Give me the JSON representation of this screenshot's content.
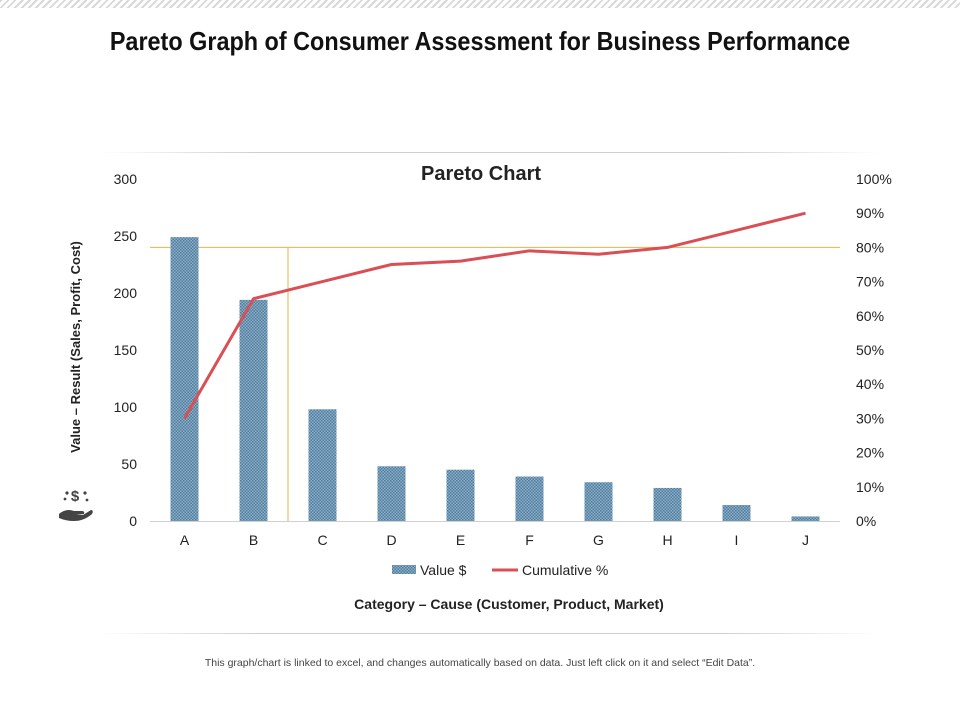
{
  "page": {
    "title": "Pareto Graph of Consumer Assessment for Business Performance",
    "footer": "This graph/chart is linked to excel, and changes automatically based on data. Just left click on it and select “Edit Data”."
  },
  "icon": {
    "name": "money-hand-icon"
  },
  "colors": {
    "bar": "#7fa3bd",
    "bar_dark": "#4a7a9b",
    "line": "#d94f54",
    "threshold": "#e8b24a",
    "text": "#222222"
  },
  "chart_data": {
    "type": "bar",
    "title": "Pareto Chart",
    "xlabel": "Category – Cause (Customer, Product, Market)",
    "ylabel": "Value – Result (Sales, Profit, Cost)",
    "categories": [
      "A",
      "B",
      "C",
      "D",
      "E",
      "F",
      "G",
      "H",
      "I",
      "J"
    ],
    "ylim": [
      0,
      300
    ],
    "yticks": [
      0,
      50,
      100,
      150,
      200,
      250,
      300
    ],
    "y2lim": [
      0,
      100
    ],
    "y2ticks": [
      "0%",
      "10%",
      "20%",
      "30%",
      "40%",
      "50%",
      "60%",
      "70%",
      "80%",
      "90%",
      "100%"
    ],
    "series": [
      {
        "name": "Value $",
        "type": "bar",
        "axis": "left",
        "values": [
          249,
          194,
          98,
          48,
          45,
          39,
          34,
          29,
          14,
          4
        ]
      },
      {
        "name": "Cumulative %",
        "type": "line",
        "axis": "right",
        "values": [
          30,
          65,
          70,
          75,
          76,
          79,
          78,
          80,
          85,
          90
        ]
      }
    ],
    "threshold": {
      "percent": 80,
      "category_index": 1.5
    },
    "legend_position": "bottom",
    "grid": false
  }
}
